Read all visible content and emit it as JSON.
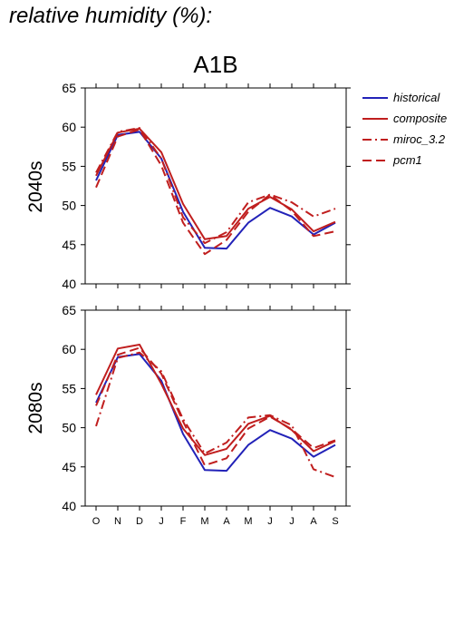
{
  "page_title": "relative humidity (%):",
  "chart_title": "A1B",
  "colors": {
    "historical": "#2222b8",
    "composite": "#c01e1e",
    "miroc_3.2": "#c01e1e",
    "pcm1": "#c01e1e",
    "axis": "#000000"
  },
  "legend": [
    {
      "name": "historical",
      "style": "solid",
      "color": "#2222b8"
    },
    {
      "name": "composite",
      "style": "solid",
      "color": "#c01e1e"
    },
    {
      "name": "miroc_3.2",
      "style": "dashdot",
      "color": "#c01e1e"
    },
    {
      "name": "pcm1",
      "style": "dashed",
      "color": "#c01e1e"
    }
  ],
  "chart_data": [
    {
      "type": "line",
      "panel": "2040s",
      "title": "A1B",
      "categories": [
        "O",
        "N",
        "D",
        "J",
        "F",
        "M",
        "A",
        "M",
        "J",
        "J",
        "A",
        "S"
      ],
      "ylim": [
        40,
        65
      ],
      "yticks": [
        40,
        45,
        50,
        55,
        60,
        65
      ],
      "series": [
        {
          "name": "historical",
          "values": [
            53.2,
            59.0,
            59.4,
            56.0,
            49.2,
            44.6,
            44.5,
            47.8,
            49.7,
            48.6,
            46.3,
            47.8
          ]
        },
        {
          "name": "composite",
          "values": [
            53.8,
            59.3,
            59.8,
            56.8,
            50.2,
            45.7,
            46.1,
            49.6,
            51.1,
            49.5,
            46.7,
            47.9
          ]
        },
        {
          "name": "miroc_3.2",
          "values": [
            54.2,
            59.4,
            59.9,
            56.0,
            48.5,
            45.2,
            46.6,
            50.4,
            51.4,
            50.4,
            48.6,
            49.6
          ]
        },
        {
          "name": "pcm1",
          "values": [
            52.3,
            58.8,
            59.7,
            55.1,
            47.8,
            43.8,
            45.6,
            49.2,
            51.4,
            49.3,
            46.1,
            46.7
          ]
        }
      ]
    },
    {
      "type": "line",
      "panel": "2080s",
      "categories": [
        "O",
        "N",
        "D",
        "J",
        "F",
        "M",
        "A",
        "M",
        "J",
        "J",
        "A",
        "S"
      ],
      "ylim": [
        40,
        65
      ],
      "yticks": [
        40,
        45,
        50,
        55,
        60,
        65
      ],
      "series": [
        {
          "name": "historical",
          "values": [
            53.2,
            59.0,
            59.4,
            56.0,
            49.2,
            44.6,
            44.5,
            47.8,
            49.7,
            48.6,
            46.3,
            47.8
          ]
        },
        {
          "name": "composite",
          "values": [
            54.2,
            60.1,
            60.6,
            55.6,
            49.9,
            46.5,
            47.3,
            50.5,
            51.5,
            49.7,
            47.0,
            48.3
          ]
        },
        {
          "name": "miroc_3.2",
          "values": [
            50.2,
            58.9,
            59.6,
            57.2,
            51.1,
            46.7,
            48.1,
            51.3,
            51.6,
            50.3,
            44.7,
            43.7
          ]
        },
        {
          "name": "pcm1",
          "values": [
            52.8,
            59.3,
            60.2,
            56.9,
            50.8,
            45.2,
            46.1,
            49.9,
            51.4,
            49.8,
            47.4,
            48.4
          ]
        }
      ]
    }
  ]
}
